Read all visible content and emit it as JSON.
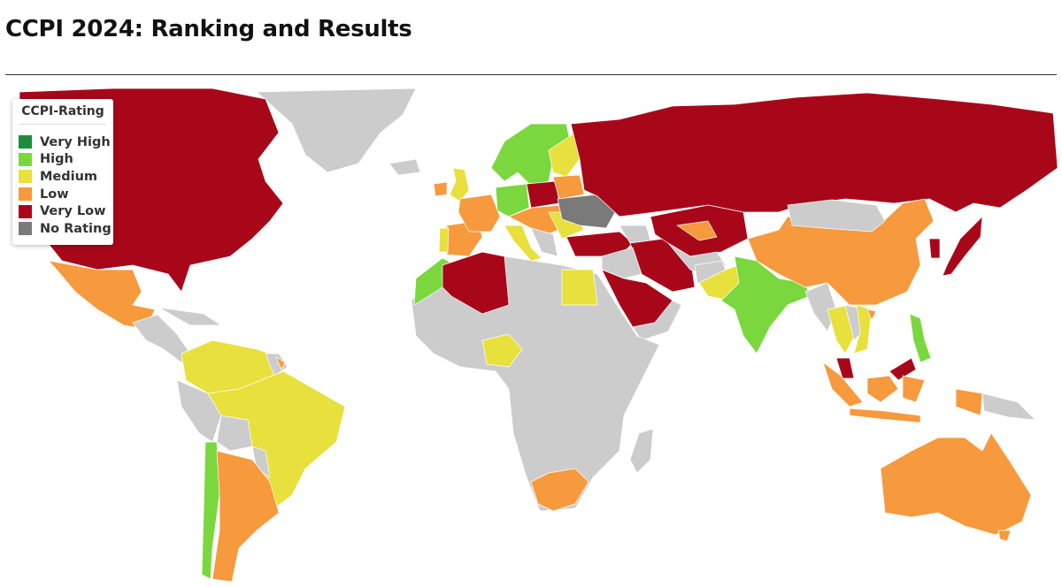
{
  "header": {
    "title": "CCPI 2024: Ranking and Results"
  },
  "legend": {
    "title": "CCPI-Rating",
    "items": [
      {
        "label": "Very High",
        "color": "#1e8c3c"
      },
      {
        "label": "High",
        "color": "#7ad83e"
      },
      {
        "label": "Medium",
        "color": "#e8e03c"
      },
      {
        "label": "Low",
        "color": "#f7993d"
      },
      {
        "label": "Very Low",
        "color": "#a8071a"
      },
      {
        "label": "No Rating",
        "color": "#7a7a7a"
      }
    ]
  }
}
